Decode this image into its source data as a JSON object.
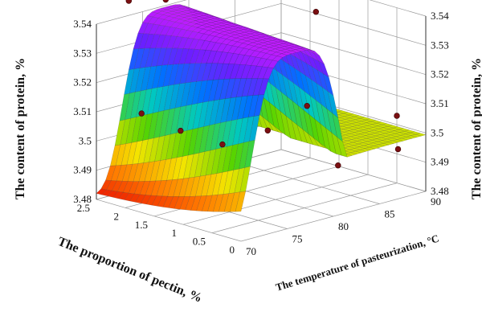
{
  "chart_data": {
    "type": "surface3d",
    "z_axis": {
      "label": "The content of protein, %",
      "ticks": [
        "3.48",
        "3.49",
        "3.5",
        "3.51",
        "3.52",
        "3.53",
        "3.54"
      ],
      "range": [
        3.48,
        3.54
      ]
    },
    "x_axis": {
      "label": "The proportion of pectin, %",
      "ticks": [
        "0",
        "0.5",
        "1",
        "1.5",
        "2",
        "2.5"
      ],
      "range": [
        0,
        2.5
      ]
    },
    "y_axis": {
      "label": "The temperature of pasteurization, °C",
      "ticks": [
        "70",
        "75",
        "80",
        "85",
        "90"
      ],
      "range": [
        70,
        90
      ]
    },
    "colormap": [
      "#e80000",
      "#ff7a00",
      "#f4e400",
      "#56d400",
      "#00c8c0",
      "#0070ff",
      "#6a1fff",
      "#c51cff"
    ],
    "grid": true
  }
}
